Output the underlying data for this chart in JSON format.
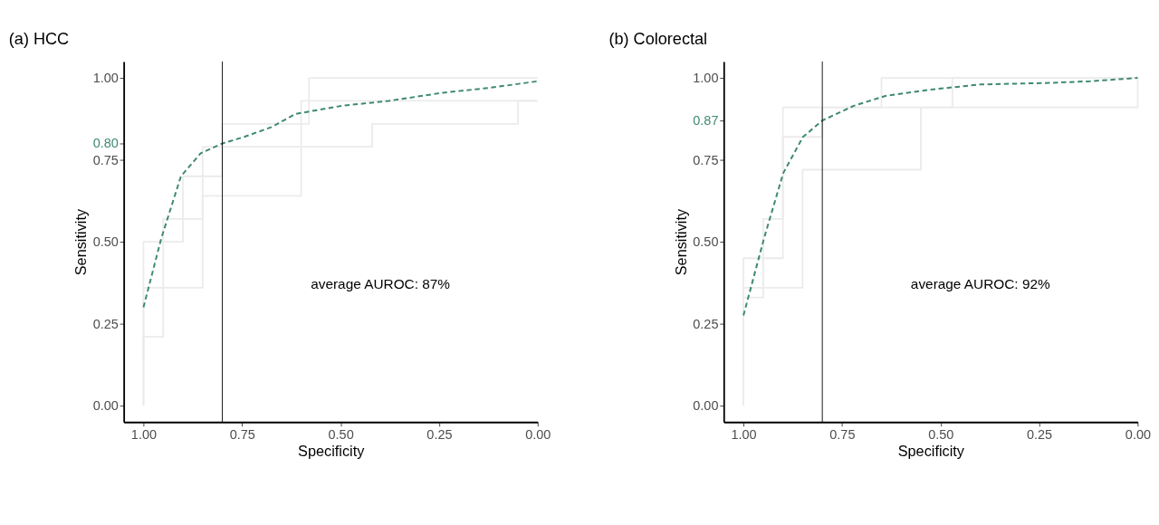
{
  "chart_data": [
    {
      "type": "line",
      "title": "(a)    HCC",
      "xlabel": "Specificity",
      "ylabel": "Sensitivity",
      "xlim": [
        1.05,
        0
      ],
      "ylim": [
        -0.05,
        1.05
      ],
      "xticks": [
        {
          "value": 1,
          "label": "1.00"
        },
        {
          "value": 0.75,
          "label": "0.75"
        },
        {
          "value": 0.5,
          "label": "0.50"
        },
        {
          "value": 0.25,
          "label": "0.25"
        },
        {
          "value": 0,
          "label": "0.00"
        }
      ],
      "yticks": [
        {
          "value": 0,
          "label": "0.00"
        },
        {
          "value": 0.25,
          "label": "0.25"
        },
        {
          "value": 0.5,
          "label": "0.50"
        },
        {
          "value": 0.75,
          "label": "0.75"
        },
        {
          "value": 0.8,
          "label": "0.80"
        },
        {
          "value": 1,
          "label": "1.00"
        }
      ],
      "grid": false,
      "legend": false,
      "series": [
        {
          "color": "#ebebeb",
          "x": [
            1,
            1,
            0.9,
            0.9,
            0.8,
            0.8,
            0.58,
            0.58,
            0
          ],
          "values": [
            0,
            0.5,
            0.5,
            0.7,
            0.7,
            0.86,
            0.86,
            1,
            1
          ]
        },
        {
          "color": "#ebebeb",
          "x": [
            1,
            1,
            0.95,
            0.95,
            0.85,
            0.85,
            0.42,
            0.42,
            0.05,
            0.05,
            0
          ],
          "values": [
            0,
            0.21,
            0.21,
            0.57,
            0.57,
            0.79,
            0.79,
            0.86,
            0.86,
            0.93,
            0.93
          ]
        },
        {
          "color": "#ebebeb",
          "x": [
            1,
            1,
            0.85,
            0.85,
            0.6,
            0.6,
            0
          ],
          "values": [
            0.14,
            0.36,
            0.36,
            0.64,
            0.64,
            0.93,
            0.93
          ]
        },
        {
          "color": "#3f8a6e",
          "line_style": "dashed",
          "x": [
            1.0,
            0.955,
            0.905,
            0.855,
            0.8,
            0.745,
            0.675,
            0.615,
            0.497,
            0.378,
            0.24,
            0.12,
            0.0
          ],
          "values": [
            0.3,
            0.51,
            0.7,
            0.77,
            0.8,
            0.82,
            0.85,
            0.89,
            0.915,
            0.93,
            0.955,
            0.97,
            0.99
          ]
        }
      ],
      "ref_lines": [
        {
          "axis": "x",
          "value": 0.8,
          "color": "#000000"
        }
      ],
      "annotations": [
        "average AUROC: 87%"
      ]
    },
    {
      "type": "line",
      "title": "(b)    Colorectal",
      "xlabel": "Specificity",
      "ylabel": "Sensitivity",
      "xlim": [
        1.05,
        0
      ],
      "ylim": [
        -0.05,
        1.05
      ],
      "xticks": [
        {
          "value": 1,
          "label": "1.00"
        },
        {
          "value": 0.75,
          "label": "0.75"
        },
        {
          "value": 0.5,
          "label": "0.50"
        },
        {
          "value": 0.25,
          "label": "0.25"
        },
        {
          "value": 0,
          "label": "0.00"
        }
      ],
      "yticks": [
        {
          "value": 0,
          "label": "0.00"
        },
        {
          "value": 0.25,
          "label": "0.25"
        },
        {
          "value": 0.5,
          "label": "0.50"
        },
        {
          "value": 0.75,
          "label": "0.75"
        },
        {
          "value": 0.87,
          "label": "0.87"
        },
        {
          "value": 1,
          "label": "1.00"
        }
      ],
      "grid": false,
      "legend": false,
      "series": [
        {
          "color": "#ebebeb",
          "x": [
            1,
            1,
            0.95,
            0.95,
            0.9,
            0.9,
            0.65,
            0.65,
            0
          ],
          "values": [
            0,
            0.33,
            0.33,
            0.57,
            0.57,
            0.91,
            0.91,
            1,
            1
          ]
        },
        {
          "color": "#ebebeb",
          "x": [
            1,
            1,
            0.85,
            0.85,
            0.55,
            0.55,
            0,
            0
          ],
          "values": [
            0.18,
            0.36,
            0.36,
            0.72,
            0.72,
            0.91,
            0.91,
            1
          ]
        },
        {
          "color": "#ebebeb",
          "x": [
            1,
            1,
            0.9,
            0.9,
            0.8,
            0.8,
            0.47,
            0.47,
            0
          ],
          "values": [
            0.09,
            0.45,
            0.45,
            0.82,
            0.82,
            0.91,
            0.91,
            1,
            1
          ]
        },
        {
          "color": "#3f8a6e",
          "line_style": "dashed",
          "x": [
            1.0,
            0.948,
            0.899,
            0.849,
            0.8,
            0.72,
            0.64,
            0.52,
            0.4,
            0.22,
            0.12,
            0.0
          ],
          "values": [
            0.275,
            0.51,
            0.71,
            0.82,
            0.87,
            0.915,
            0.945,
            0.965,
            0.98,
            0.985,
            0.99,
            1.0
          ]
        }
      ],
      "ref_lines": [
        {
          "axis": "x",
          "value": 0.8,
          "color": "#000000"
        }
      ],
      "annotations": [
        "average AUROC: 92%"
      ]
    }
  ]
}
